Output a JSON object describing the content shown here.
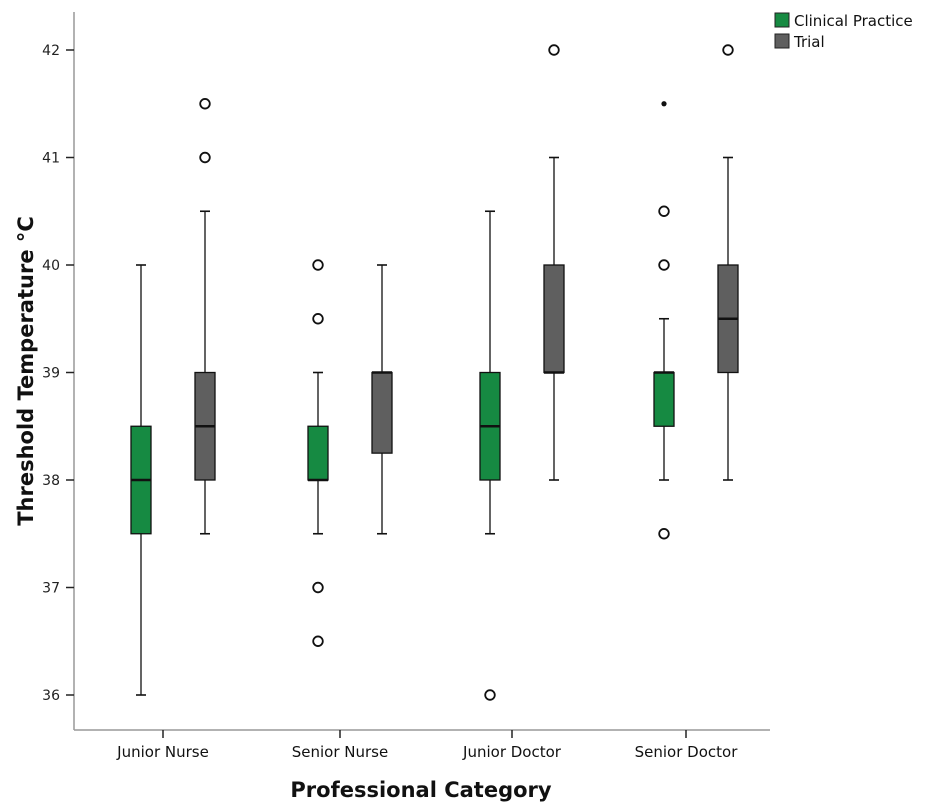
{
  "chart_data": {
    "type": "boxplot",
    "xlabel": "Professional Category",
    "ylabel": "Threshold Temperature °C",
    "ylim": [
      35.5,
      42.3
    ],
    "yticks": [
      36,
      37,
      38,
      39,
      40,
      41,
      42
    ],
    "categories": [
      "Junior Nurse",
      "Senior Nurse",
      "Junior Doctor",
      "Senior Doctor"
    ],
    "legend_position": "top-right",
    "series": [
      {
        "name": "Clinical Practice",
        "color": "#168a42",
        "boxes": [
          {
            "whisker_low": 36,
            "q1": 37.5,
            "median": 38,
            "q3": 38.5,
            "whisker_high": 40,
            "outliers": [],
            "extremes": []
          },
          {
            "whisker_low": 37.5,
            "q1": 38,
            "median": 38,
            "q3": 38.5,
            "whisker_high": 39,
            "outliers": [
              40,
              39.5,
              37,
              36.5
            ],
            "extremes": []
          },
          {
            "whisker_low": 37.5,
            "q1": 38,
            "median": 38.5,
            "q3": 39,
            "whisker_high": 40.5,
            "outliers": [
              36
            ],
            "extremes": []
          },
          {
            "whisker_low": 38,
            "q1": 38.5,
            "median": 39,
            "q3": 39,
            "whisker_high": 39.5,
            "outliers": [
              40.5,
              40,
              37.5
            ],
            "extremes": [
              41.5
            ]
          }
        ]
      },
      {
        "name": "Trial",
        "color": "#5f5f5f",
        "boxes": [
          {
            "whisker_low": 37.5,
            "q1": 38,
            "median": 38.5,
            "q3": 39,
            "whisker_high": 40.5,
            "outliers": [
              41.5,
              41
            ],
            "extremes": []
          },
          {
            "whisker_low": 37.5,
            "q1": 38.25,
            "median": 39,
            "q3": 39,
            "whisker_high": 40,
            "outliers": [],
            "extremes": []
          },
          {
            "whisker_low": 38,
            "q1": 39,
            "median": 39,
            "q3": 40,
            "whisker_high": 41,
            "outliers": [
              42
            ],
            "extremes": []
          },
          {
            "whisker_low": 38,
            "q1": 39,
            "median": 39.5,
            "q3": 40,
            "whisker_high": 41,
            "outliers": [
              42
            ],
            "extremes": []
          }
        ]
      }
    ]
  }
}
